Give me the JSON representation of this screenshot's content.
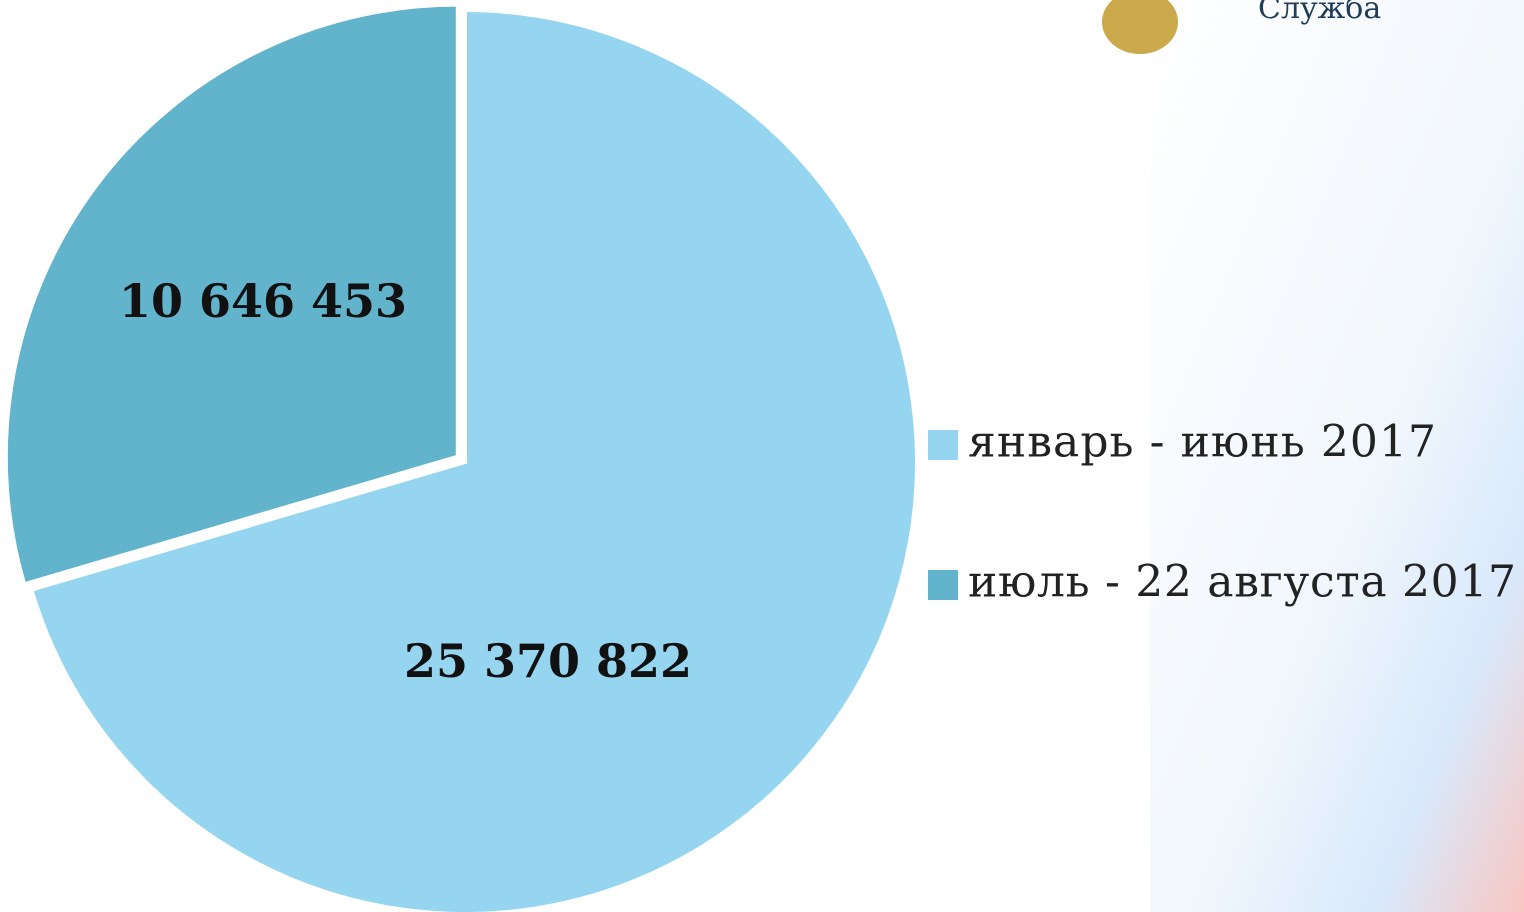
{
  "chart_data": {
    "type": "pie",
    "annotations": [
      "Служба"
    ],
    "categories": [
      "январь - июнь 2017",
      "июль - 22 августа 2017"
    ],
    "values": [
      25370822,
      10646453
    ],
    "value_labels": [
      "25 370 822",
      "10 646 453"
    ],
    "colors": [
      "#95d5f0",
      "#62b3cc"
    ],
    "legend": "right"
  }
}
